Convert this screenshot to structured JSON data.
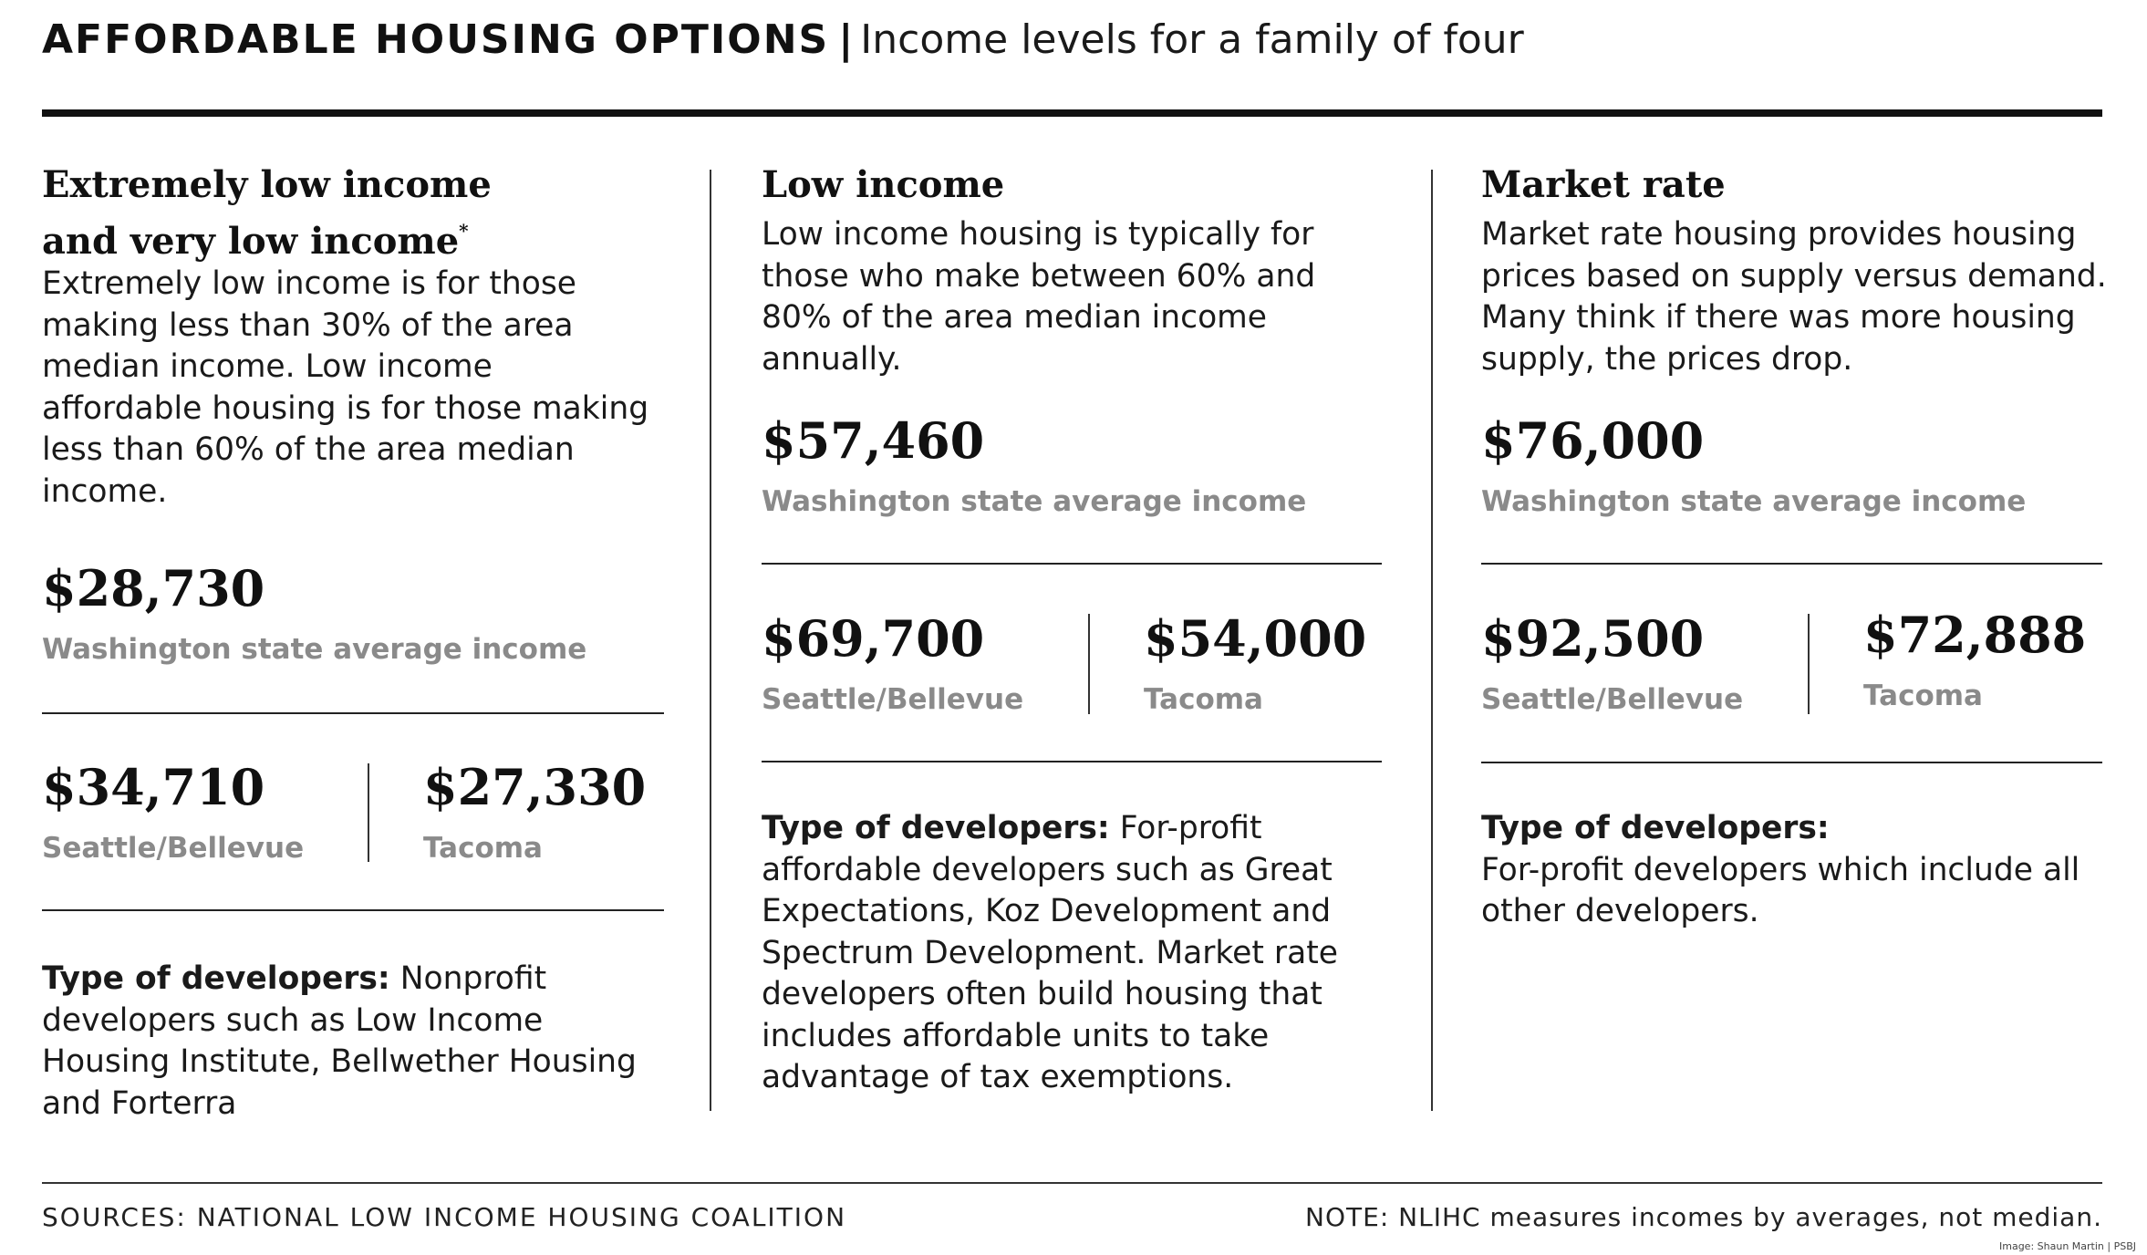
{
  "header": {
    "title": "AFFORDABLE HOUSING OPTIONS",
    "separator": "|",
    "subtitle": "Income levels for a family of four"
  },
  "columns": [
    {
      "title_line1": "Extremely low income",
      "title_line2": "and very low income",
      "title_mark": "*",
      "description": "Extremely low income is for those making less than 30% of the area median income. Low income affordable housing is for those making less than 60% of the area median income.",
      "state_value": "$28,730",
      "state_label": "Washington state average income",
      "seattle_value": "$34,710",
      "seattle_label": "Seattle/Bellevue",
      "tacoma_value": "$27,330",
      "tacoma_label": "Tacoma",
      "dev_label": "Type of developers:",
      "dev_text": "Nonprofit developers such as Low Income Housing Institute, Bellwether Housing and Forterra"
    },
    {
      "title_line1": "Low income",
      "description": "Low income housing is typically for those who make between 60% and 80% of the area median income annually.",
      "state_value": "$57,460",
      "state_label": "Washington state average income",
      "seattle_value": "$69,700",
      "seattle_label": "Seattle/Bellevue",
      "tacoma_value": "$54,000",
      "tacoma_label": "Tacoma",
      "dev_label": "Type of developers:",
      "dev_text": "For-profit affordable developers such as Great Expectations, Koz Development and Spectrum Development. Market rate developers often build housing that includes affordable units to take advantage of tax exemptions."
    },
    {
      "title_line1": "Market rate",
      "description": "Market rate housing provides housing prices based on supply versus demand. Many think if there was more housing supply, the prices drop.",
      "state_value": "$76,000",
      "state_label": "Washington state average income",
      "seattle_value": "$92,500",
      "seattle_label": "Seattle/Bellevue",
      "tacoma_value": "$72,888",
      "tacoma_label": "Tacoma",
      "dev_label": "Type of developers:",
      "dev_text": "For-profit developers which include all other developers."
    }
  ],
  "footer": {
    "sources": "SOURCES: NATIONAL LOW INCOME HOUSING COALITION",
    "note": "NOTE: NLIHC measures incomes by averages, not median.",
    "credit": "Image: Shaun Martin | PSBJ"
  }
}
